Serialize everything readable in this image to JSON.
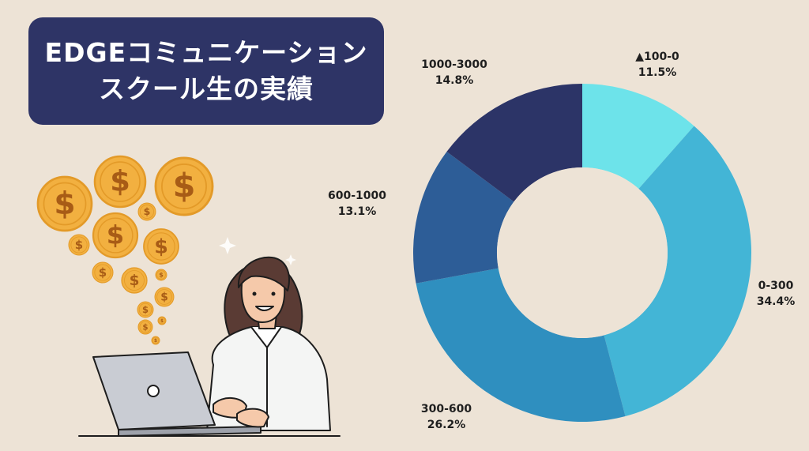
{
  "title": {
    "line1": "EDGEコミュニケーション",
    "line2": "スクール生の実績"
  },
  "colors": {
    "background": "#ede3d6",
    "title_box": "#2e3466",
    "coin": "#f2b040",
    "coin_ring": "#e39a28",
    "coin_symbol": "#a85c16"
  },
  "illustration": {
    "icons": [
      "coin-dollar-icon",
      "woman-with-laptop"
    ]
  },
  "chart_data": {
    "type": "pie",
    "donut": true,
    "title": "",
    "slices": [
      {
        "label": "▲100-0",
        "value": 11.5,
        "percent_label": "11.5%",
        "color": "#6de3ea"
      },
      {
        "label": "0-300",
        "value": 34.4,
        "percent_label": "34.4%",
        "color": "#43b5d6"
      },
      {
        "label": "300-600",
        "value": 26.2,
        "percent_label": "26.2%",
        "color": "#2f8fbf"
      },
      {
        "label": "600-1000",
        "value": 13.1,
        "percent_label": "13.1%",
        "color": "#2d5d97"
      },
      {
        "label": "1000-3000",
        "value": 14.8,
        "percent_label": "14.8%",
        "color": "#2c3467"
      }
    ]
  }
}
